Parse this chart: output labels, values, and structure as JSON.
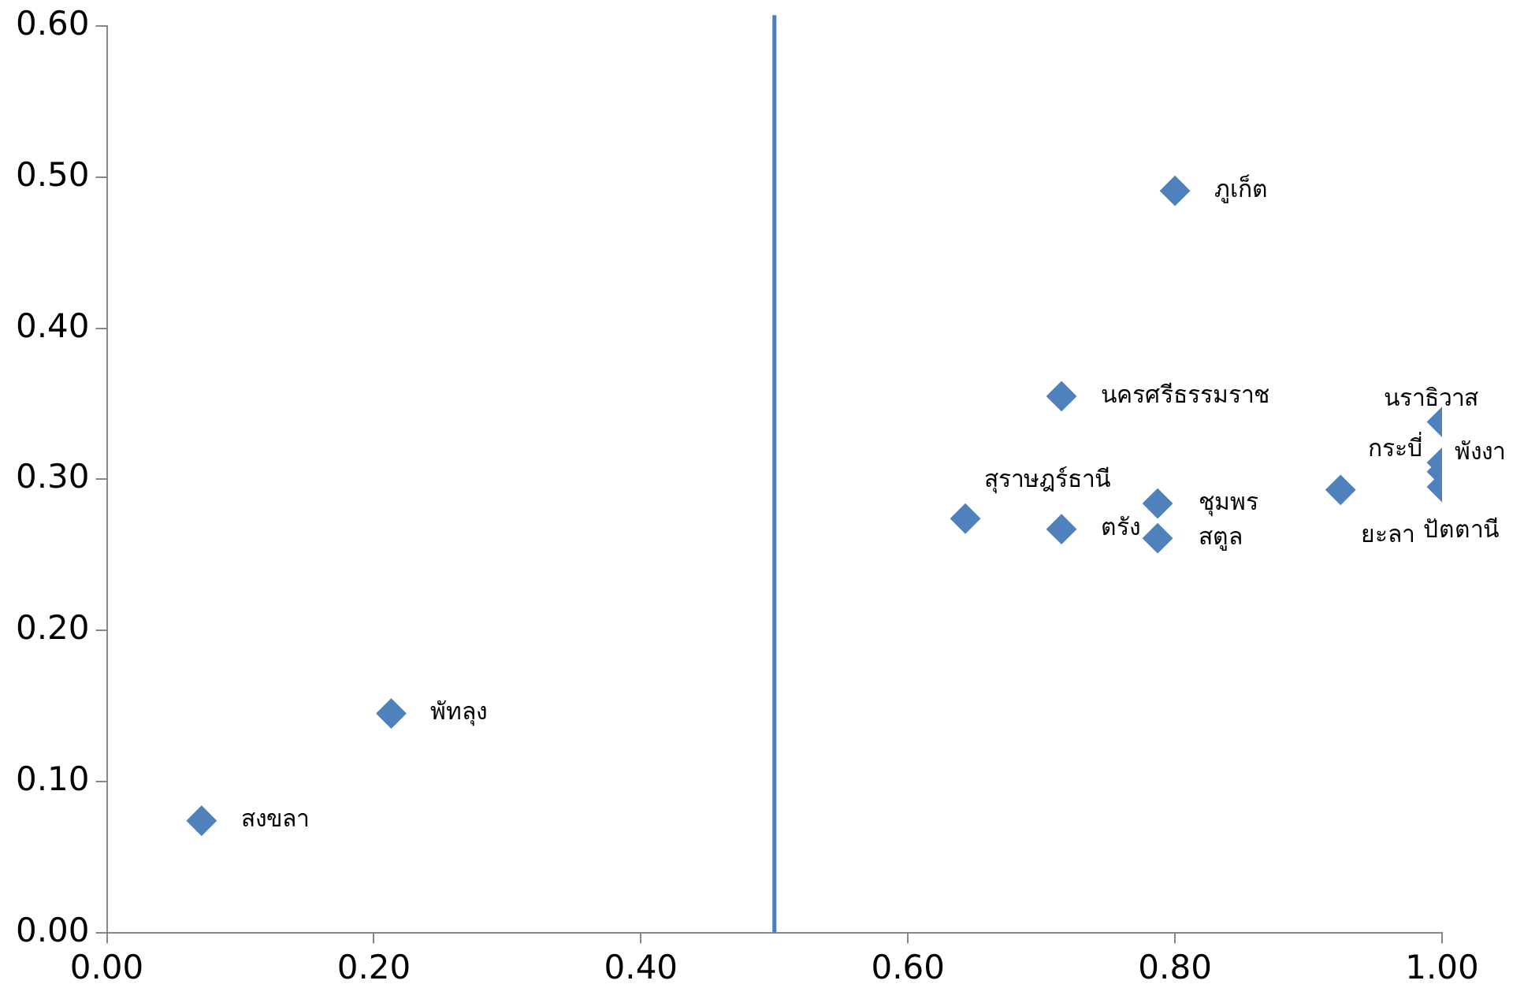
{
  "chart_data": {
    "type": "scatter",
    "x": [
      0.071,
      0.213,
      0.8,
      0.715,
      0.643,
      0.715,
      0.787,
      0.787,
      0.924,
      1.0,
      1.0,
      1.0,
      1.0
    ],
    "values": [
      0.074,
      0.145,
      0.491,
      0.355,
      0.274,
      0.267,
      0.284,
      0.261,
      0.293,
      0.338,
      0.311,
      0.305,
      0.295
    ],
    "color": "#4f81bd",
    "marker": "diamond",
    "grid": false,
    "legend": false,
    "xlim": [
      0,
      1
    ],
    "xticks": [
      {
        "value": 0,
        "label": "0.00"
      },
      {
        "value": 0.2,
        "label": "0.20"
      },
      {
        "value": 0.4,
        "label": "0.40"
      },
      {
        "value": 0.6,
        "label": "0.60"
      },
      {
        "value": 0.8,
        "label": "0.80"
      },
      {
        "value": 1,
        "label": "1.00"
      }
    ],
    "ylim": [
      0,
      0.6
    ],
    "yticks": [
      {
        "value": 0,
        "label": "0.00"
      },
      {
        "value": 0.1,
        "label": "0.10"
      },
      {
        "value": 0.2,
        "label": "0.20"
      },
      {
        "value": 0.3,
        "label": "0.30"
      },
      {
        "value": 0.4,
        "label": "0.40"
      },
      {
        "value": 0.5,
        "label": "0.50"
      },
      {
        "value": 0.6,
        "label": "0.60"
      }
    ],
    "ref_lines": [
      {
        "axis": "x",
        "value": 0.5,
        "color": "#4a7ebb"
      }
    ],
    "annotations": [
      {
        "text": "สงขลา",
        "x": 0.071,
        "y": 0.074
      },
      {
        "text": "พัทลุง",
        "x": 0.213,
        "y": 0.145
      },
      {
        "text": "ภูเก็ต",
        "x": 0.8,
        "y": 0.491
      },
      {
        "text": "นครศรีธรรมราช",
        "x": 0.715,
        "y": 0.355
      },
      {
        "text": "สุราษฎร์ธานี",
        "x": 0.643,
        "y": 0.274
      },
      {
        "text": "ตรัง",
        "x": 0.715,
        "y": 0.267
      },
      {
        "text": "ชุมพร",
        "x": 0.787,
        "y": 0.284
      },
      {
        "text": "สตูล",
        "x": 0.787,
        "y": 0.261
      },
      {
        "text": "ยะลา",
        "x": 0.924,
        "y": 0.293
      },
      {
        "text": "นราธิวาส",
        "x": 1.0,
        "y": 0.338
      },
      {
        "text": "กระบี่",
        "x": 1.0,
        "y": 0.311
      },
      {
        "text": "พังงา",
        "x": 1.0,
        "y": 0.305
      },
      {
        "text": "ปัตตานี",
        "x": 1.0,
        "y": 0.295
      }
    ]
  }
}
